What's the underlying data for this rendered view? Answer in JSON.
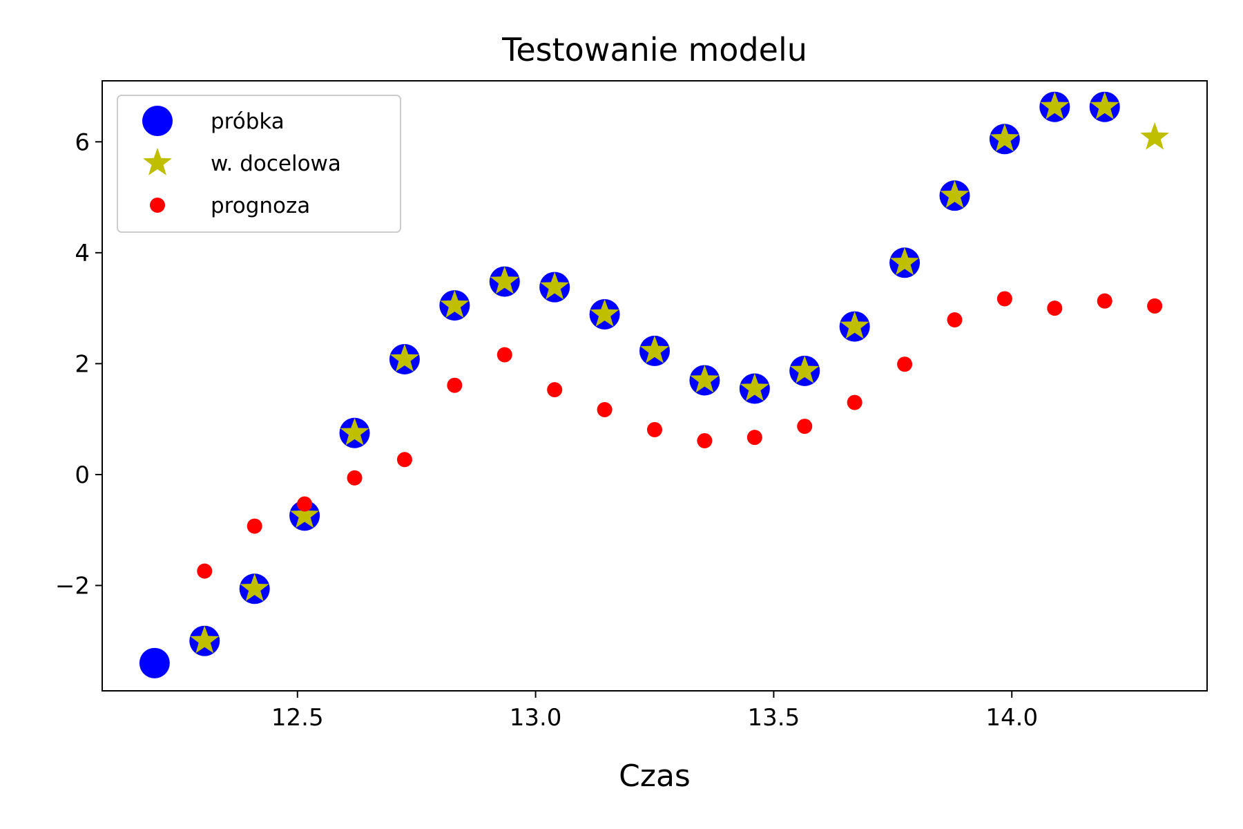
{
  "chart_data": {
    "type": "scatter",
    "title": "Testowanie modelu",
    "xlabel": "Czas",
    "ylabel": "",
    "xlim": [
      12.09,
      14.41
    ],
    "ylim": [
      -3.9,
      7.1
    ],
    "x_ticks": [
      {
        "value": 12.5,
        "label": "12.5"
      },
      {
        "value": 13.0,
        "label": "13.0"
      },
      {
        "value": 13.5,
        "label": "13.5"
      },
      {
        "value": 14.0,
        "label": "14.0"
      }
    ],
    "y_ticks": [
      {
        "value": -2,
        "label": "−2"
      },
      {
        "value": 0,
        "label": "0"
      },
      {
        "value": 2,
        "label": "2"
      },
      {
        "value": 4,
        "label": "4"
      },
      {
        "value": 6,
        "label": "6"
      }
    ],
    "grid": false,
    "legend_position": "top-left",
    "series": [
      {
        "name": "próbka",
        "marker": "circle-large",
        "color": "#0000ff",
        "x": [
          12.2,
          12.305,
          12.41,
          12.515,
          12.62,
          12.725,
          12.83,
          12.935,
          13.04,
          13.145,
          13.25,
          13.355,
          13.46,
          13.565,
          13.67,
          13.775,
          13.88,
          13.985,
          14.09,
          14.195
        ],
        "y": [
          -3.4,
          -3.0,
          -2.06,
          -0.74,
          0.75,
          2.08,
          3.05,
          3.48,
          3.38,
          2.89,
          2.23,
          1.7,
          1.55,
          1.87,
          2.67,
          3.82,
          5.03,
          6.05,
          6.63,
          6.63
        ]
      },
      {
        "name": "w. docelowa",
        "marker": "star",
        "color": "#bfbf00",
        "x": [
          12.305,
          12.41,
          12.515,
          12.62,
          12.725,
          12.83,
          12.935,
          13.04,
          13.145,
          13.25,
          13.355,
          13.46,
          13.565,
          13.67,
          13.775,
          13.88,
          13.985,
          14.09,
          14.195,
          14.3
        ],
        "y": [
          -3.0,
          -2.06,
          -0.74,
          0.75,
          2.08,
          3.05,
          3.48,
          3.38,
          2.89,
          2.23,
          1.7,
          1.55,
          1.87,
          2.67,
          3.82,
          5.03,
          6.05,
          6.63,
          6.63,
          6.08
        ]
      },
      {
        "name": "prognoza",
        "marker": "circle-small",
        "color": "#ff0000",
        "x": [
          12.305,
          12.41,
          12.515,
          12.62,
          12.725,
          12.83,
          12.935,
          13.04,
          13.145,
          13.25,
          13.355,
          13.46,
          13.565,
          13.67,
          13.775,
          13.88,
          13.985,
          14.09,
          14.195,
          14.3
        ],
        "y": [
          -1.74,
          -0.93,
          -0.53,
          -0.06,
          0.27,
          1.61,
          2.16,
          1.53,
          1.17,
          0.81,
          0.61,
          0.67,
          0.87,
          1.3,
          1.99,
          2.79,
          3.17,
          3.0,
          3.13,
          3.04
        ]
      }
    ]
  }
}
